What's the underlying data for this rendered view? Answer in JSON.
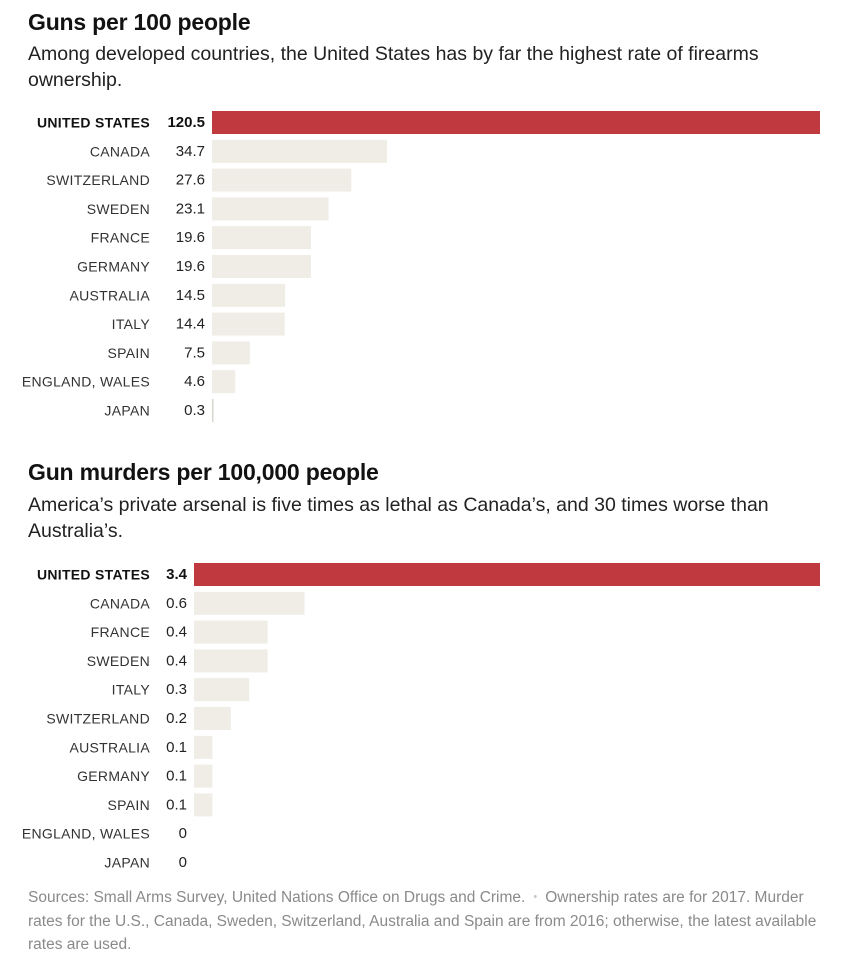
{
  "charts": [
    {
      "title": "Guns per 100 people",
      "subtitle": "Among developed countries, the United States has by far the highest rate of firearms ownership."
    },
    {
      "title": "Gun murders per 100,000 people",
      "subtitle": "America’s private arsenal is five times as lethal as Canada’s, and 30 times worse than Australia’s."
    }
  ],
  "sources": {
    "main": "Sources: Small Arms Survey, United Nations Office on Drugs and Crime.",
    "separator": "•",
    "note": "Ownership rates are for 2017. Murder rates for the U.S., Canada, Sweden, Switzerland, Australia and Spain are from 2016; otherwise, the latest available rates are used."
  },
  "colors": {
    "highlight": "#c0393f",
    "bar": "#efede6"
  },
  "chart_data": [
    {
      "type": "bar",
      "orientation": "horizontal",
      "title": "Guns per 100 people",
      "categories": [
        "UNITED STATES",
        "CANADA",
        "SWITZERLAND",
        "SWEDEN",
        "FRANCE",
        "GERMANY",
        "AUSTRALIA",
        "ITALY",
        "SPAIN",
        "ENGLAND, WALES",
        "JAPAN"
      ],
      "values": [
        120.5,
        34.7,
        27.6,
        23.1,
        19.6,
        19.6,
        14.5,
        14.4,
        7.5,
        4.6,
        0.3
      ],
      "value_labels": [
        "120.5",
        "34.7",
        "27.6",
        "23.1",
        "19.6",
        "19.6",
        "14.5",
        "14.4",
        "7.5",
        "4.6",
        "0.3"
      ],
      "highlight_index": 0,
      "xlim": [
        0,
        120.5
      ],
      "grid": false,
      "legend": "none"
    },
    {
      "type": "bar",
      "orientation": "horizontal",
      "title": "Gun murders per 100,000 people",
      "categories": [
        "UNITED STATES",
        "CANADA",
        "FRANCE",
        "SWEDEN",
        "ITALY",
        "SWITZERLAND",
        "AUSTRALIA",
        "GERMANY",
        "SPAIN",
        "ENGLAND, WALES",
        "JAPAN"
      ],
      "values": [
        3.4,
        0.6,
        0.4,
        0.4,
        0.3,
        0.2,
        0.1,
        0.1,
        0.1,
        0,
        0
      ],
      "value_labels": [
        "3.4",
        "0.6",
        "0.4",
        "0.4",
        "0.3",
        "0.2",
        "0.1",
        "0.1",
        "0.1",
        "0",
        "0"
      ],
      "highlight_index": 0,
      "xlim": [
        0,
        3.4
      ],
      "grid": false,
      "legend": "none"
    }
  ]
}
